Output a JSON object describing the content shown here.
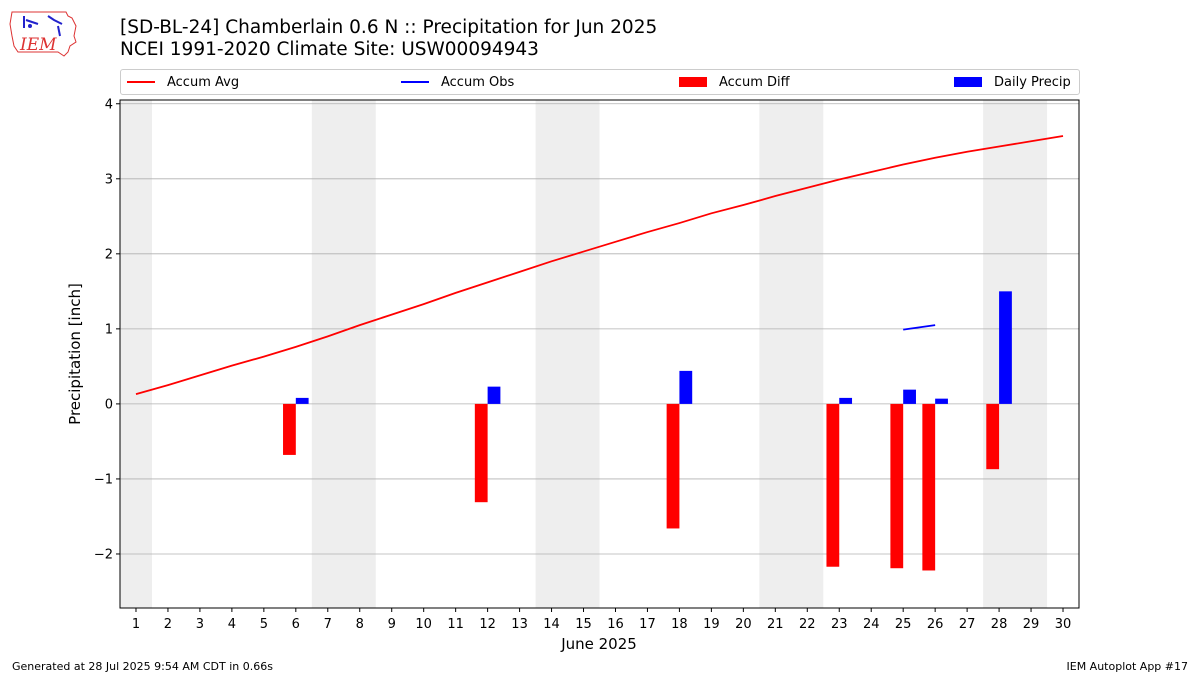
{
  "header": {
    "title_line1": "[SD-BL-24] Chamberlain 0.6 N :: Precipitation for Jun 2025",
    "title_line2": "NCEI 1991-2020 Climate Site: USW00094943",
    "logo_text": "IEM"
  },
  "legend": {
    "accum_avg": "Accum Avg",
    "accum_obs": "Accum Obs",
    "accum_diff": "Accum Diff",
    "daily_precip": "Daily Precip"
  },
  "footer": {
    "generated": "Generated at 28 Jul 2025 9:54 AM CDT in 0.66s",
    "app": "IEM Autoplot App #17"
  },
  "colors": {
    "accum_avg": "#ff0000",
    "accum_obs": "#0000ff",
    "accum_diff": "#ff0000",
    "daily_precip": "#0000ff",
    "weekend_shade": "#eeeeee",
    "grid": "#b0b0b0"
  },
  "chart_data": {
    "type": "bar",
    "xlabel": "June 2025",
    "ylabel": "Precipitation [inch]",
    "xlim": [
      0.5,
      30.5
    ],
    "ylim": [
      -2.72,
      4.05
    ],
    "yticks": [
      -2,
      -1,
      0,
      1,
      2,
      3,
      4
    ],
    "ytick_labels": [
      "−2",
      "−1",
      "0",
      "1",
      "2",
      "3",
      "4"
    ],
    "days": [
      1,
      2,
      3,
      4,
      5,
      6,
      7,
      8,
      9,
      10,
      11,
      12,
      13,
      14,
      15,
      16,
      17,
      18,
      19,
      20,
      21,
      22,
      23,
      24,
      25,
      26,
      27,
      28,
      29,
      30
    ],
    "shaded_days": [
      [
        0.5,
        1.5
      ],
      [
        6.5,
        8.5
      ],
      [
        13.5,
        15.5
      ],
      [
        20.5,
        22.5
      ],
      [
        27.5,
        29.5
      ]
    ],
    "grid": "y",
    "legend_position": "top",
    "series": [
      {
        "name": "Accum Avg",
        "kind": "line",
        "x": [
          1,
          2,
          3,
          4,
          5,
          6,
          7,
          8,
          9,
          10,
          11,
          12,
          13,
          14,
          15,
          16,
          17,
          18,
          19,
          20,
          21,
          22,
          23,
          24,
          25,
          26,
          27,
          28,
          29,
          30
        ],
        "values": [
          0.13,
          0.25,
          0.38,
          0.51,
          0.63,
          0.76,
          0.9,
          1.05,
          1.19,
          1.33,
          1.48,
          1.62,
          1.76,
          1.9,
          2.03,
          2.16,
          2.29,
          2.41,
          2.54,
          2.65,
          2.77,
          2.88,
          2.99,
          3.09,
          3.19,
          3.28,
          3.36,
          3.43,
          3.5,
          3.57
        ]
      },
      {
        "name": "Accum Obs",
        "kind": "line",
        "x": [
          25,
          26
        ],
        "values": [
          0.99,
          1.05
        ]
      },
      {
        "name": "Accum Diff",
        "kind": "bar",
        "x": [
          6,
          12,
          18,
          23,
          25,
          26,
          28
        ],
        "values": [
          -0.68,
          -1.31,
          -1.66,
          -2.17,
          -2.19,
          -2.22,
          -0.87
        ]
      },
      {
        "name": "Daily Precip",
        "kind": "bar",
        "x": [
          6,
          12,
          18,
          23,
          25,
          26,
          28
        ],
        "values": [
          0.08,
          0.23,
          0.44,
          0.08,
          0.19,
          0.07,
          1.5
        ]
      }
    ]
  }
}
